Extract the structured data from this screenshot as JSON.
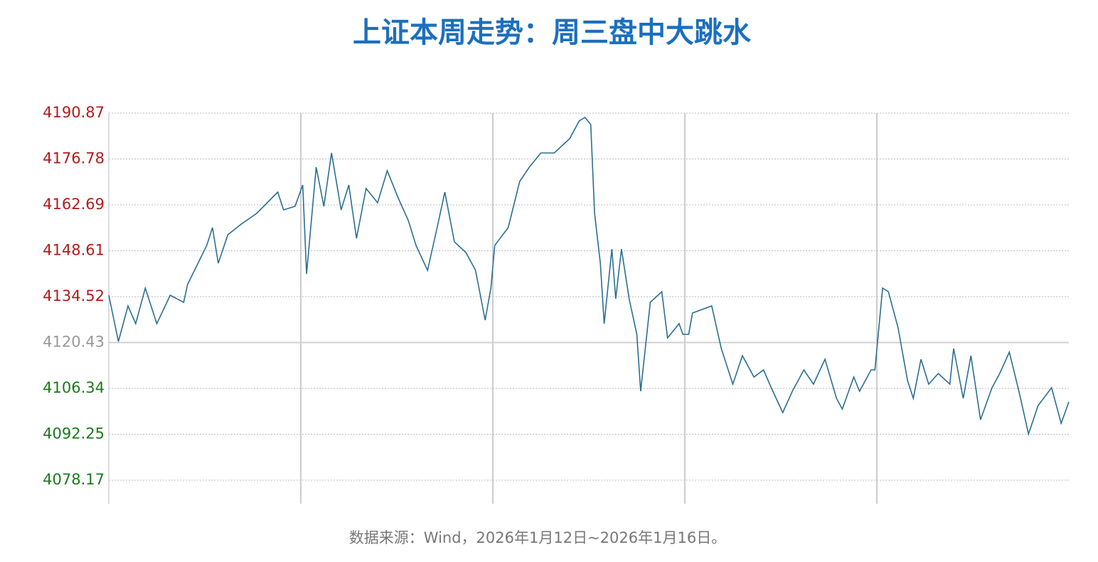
{
  "chart_data": {
    "type": "line",
    "title": "上证本周走势：周三盘中大跳水",
    "source": "数据来源：Wind，2026年1月12日~2026年1月16日。",
    "color": "#2b6f91",
    "reference": 4120.43,
    "up_color": "#b31b1b",
    "down_color": "#1a7a1a",
    "flat_color": "#999999",
    "grid": true,
    "xlim": [
      0,
      5
    ],
    "ylim": [
      4070.96,
      4190.87
    ],
    "yticks": [
      4078.17,
      4092.25,
      4106.34,
      4120.43,
      4134.52,
      4148.61,
      4162.69,
      4176.78,
      4190.87
    ],
    "x": [
      0,
      0.05,
      0.1,
      0.14,
      0.19,
      0.25,
      0.32,
      0.39,
      0.41,
      0.51,
      0.54,
      0.57,
      0.62,
      0.69,
      0.77,
      0.88,
      0.91,
      0.97,
      0.99,
      1.01,
      1.03,
      1.08,
      1.12,
      1.16,
      1.21,
      1.25,
      1.29,
      1.34,
      1.4,
      1.45,
      1.51,
      1.56,
      1.6,
      1.66,
      1.71,
      1.75,
      1.8,
      1.86,
      1.91,
      1.96,
      1.99,
      2.01,
      2.08,
      2.14,
      2.19,
      2.25,
      2.32,
      2.4,
      2.45,
      2.48,
      2.51,
      2.53,
      2.56,
      2.58,
      2.62,
      2.64,
      2.67,
      2.71,
      2.75,
      2.77,
      2.82,
      2.88,
      2.91,
      2.97,
      2.99,
      3.02,
      3.04,
      3.14,
      3.19,
      3.25,
      3.3,
      3.36,
      3.41,
      3.45,
      3.51,
      3.56,
      3.62,
      3.67,
      3.73,
      3.79,
      3.82,
      3.88,
      3.91,
      3.97,
      3.99,
      4.03,
      4.06,
      4.11,
      4.16,
      4.19,
      4.23,
      4.27,
      4.32,
      4.38,
      4.4,
      4.45,
      4.49,
      4.54,
      4.6,
      4.64,
      4.69,
      4.74,
      4.79,
      4.84,
      4.91,
      4.96,
      5.0
    ],
    "values": [
      4134.96,
      4120.76,
      4131.69,
      4126.22,
      4137.15,
      4126.22,
      4134.96,
      4132.78,
      4138.24,
      4150.25,
      4155.71,
      4144.79,
      4153.52,
      4156.8,
      4160.08,
      4166.63,
      4161.17,
      4162.26,
      4165.54,
      4168.81,
      4141.51,
      4174.27,
      4162.26,
      4178.64,
      4161.17,
      4168.81,
      4152.43,
      4167.72,
      4163.35,
      4173.18,
      4164.44,
      4157.89,
      4150.25,
      4142.61,
      4155.71,
      4166.63,
      4151.34,
      4148.06,
      4142.61,
      4127.32,
      4137.15,
      4150.25,
      4155.71,
      4169.9,
      4174.27,
      4178.64,
      4178.64,
      4183.01,
      4188.47,
      4189.56,
      4187.38,
      4160.08,
      4144.79,
      4126.22,
      4149.16,
      4133.87,
      4149.16,
      4133.87,
      4122.95,
      4105.48,
      4132.78,
      4136.05,
      4121.86,
      4126.22,
      4122.95,
      4122.95,
      4129.5,
      4131.69,
      4118.58,
      4107.66,
      4116.4,
      4109.84,
      4112.03,
      4106.57,
      4098.92,
      4105.48,
      4112.03,
      4107.66,
      4115.3,
      4103.29,
      4100.02,
      4109.84,
      4105.48,
      4112.03,
      4112.03,
      4137.15,
      4136.05,
      4125.13,
      4108.75,
      4103.29,
      4115.3,
      4107.66,
      4110.94,
      4107.66,
      4118.58,
      4103.29,
      4116.4,
      4096.74,
      4106.57,
      4110.94,
      4117.49,
      4105.48,
      4092.37,
      4101.11,
      4106.57,
      4095.65,
      4102.2
    ]
  }
}
